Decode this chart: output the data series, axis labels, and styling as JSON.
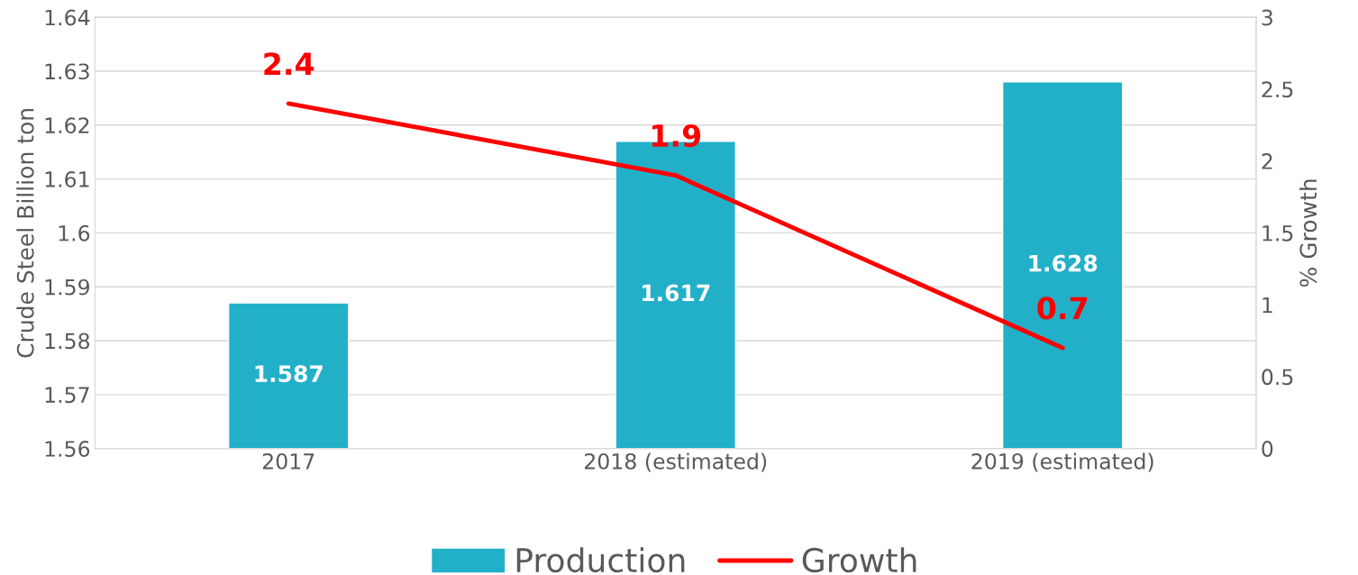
{
  "chart_data": {
    "type": "bar",
    "categories": [
      "2017",
      "2018 (estimated)",
      "2019 (estimated)"
    ],
    "series": [
      {
        "name": "Production",
        "color": "#22b0c8",
        "values": [
          1.587,
          1.617,
          1.628
        ]
      },
      {
        "name": "Growth",
        "type": "line",
        "axis": "y2",
        "color": "#ff0000",
        "values": [
          2.4,
          1.9,
          0.7
        ]
      }
    ],
    "ylabel": "Crude Steel Billion ton",
    "y2label": "% Growth",
    "ylim": [
      1.56,
      1.64
    ],
    "yticks": [
      1.56,
      1.57,
      1.58,
      1.59,
      1.6,
      1.61,
      1.62,
      1.63,
      1.64
    ],
    "y2lim": [
      0,
      3
    ],
    "y2ticks": [
      0,
      0.5,
      1,
      1.5,
      2,
      2.5,
      3
    ],
    "grid": "y",
    "legend": "bottom",
    "data_labels": true,
    "marker": "none",
    "line_style": "solid"
  }
}
